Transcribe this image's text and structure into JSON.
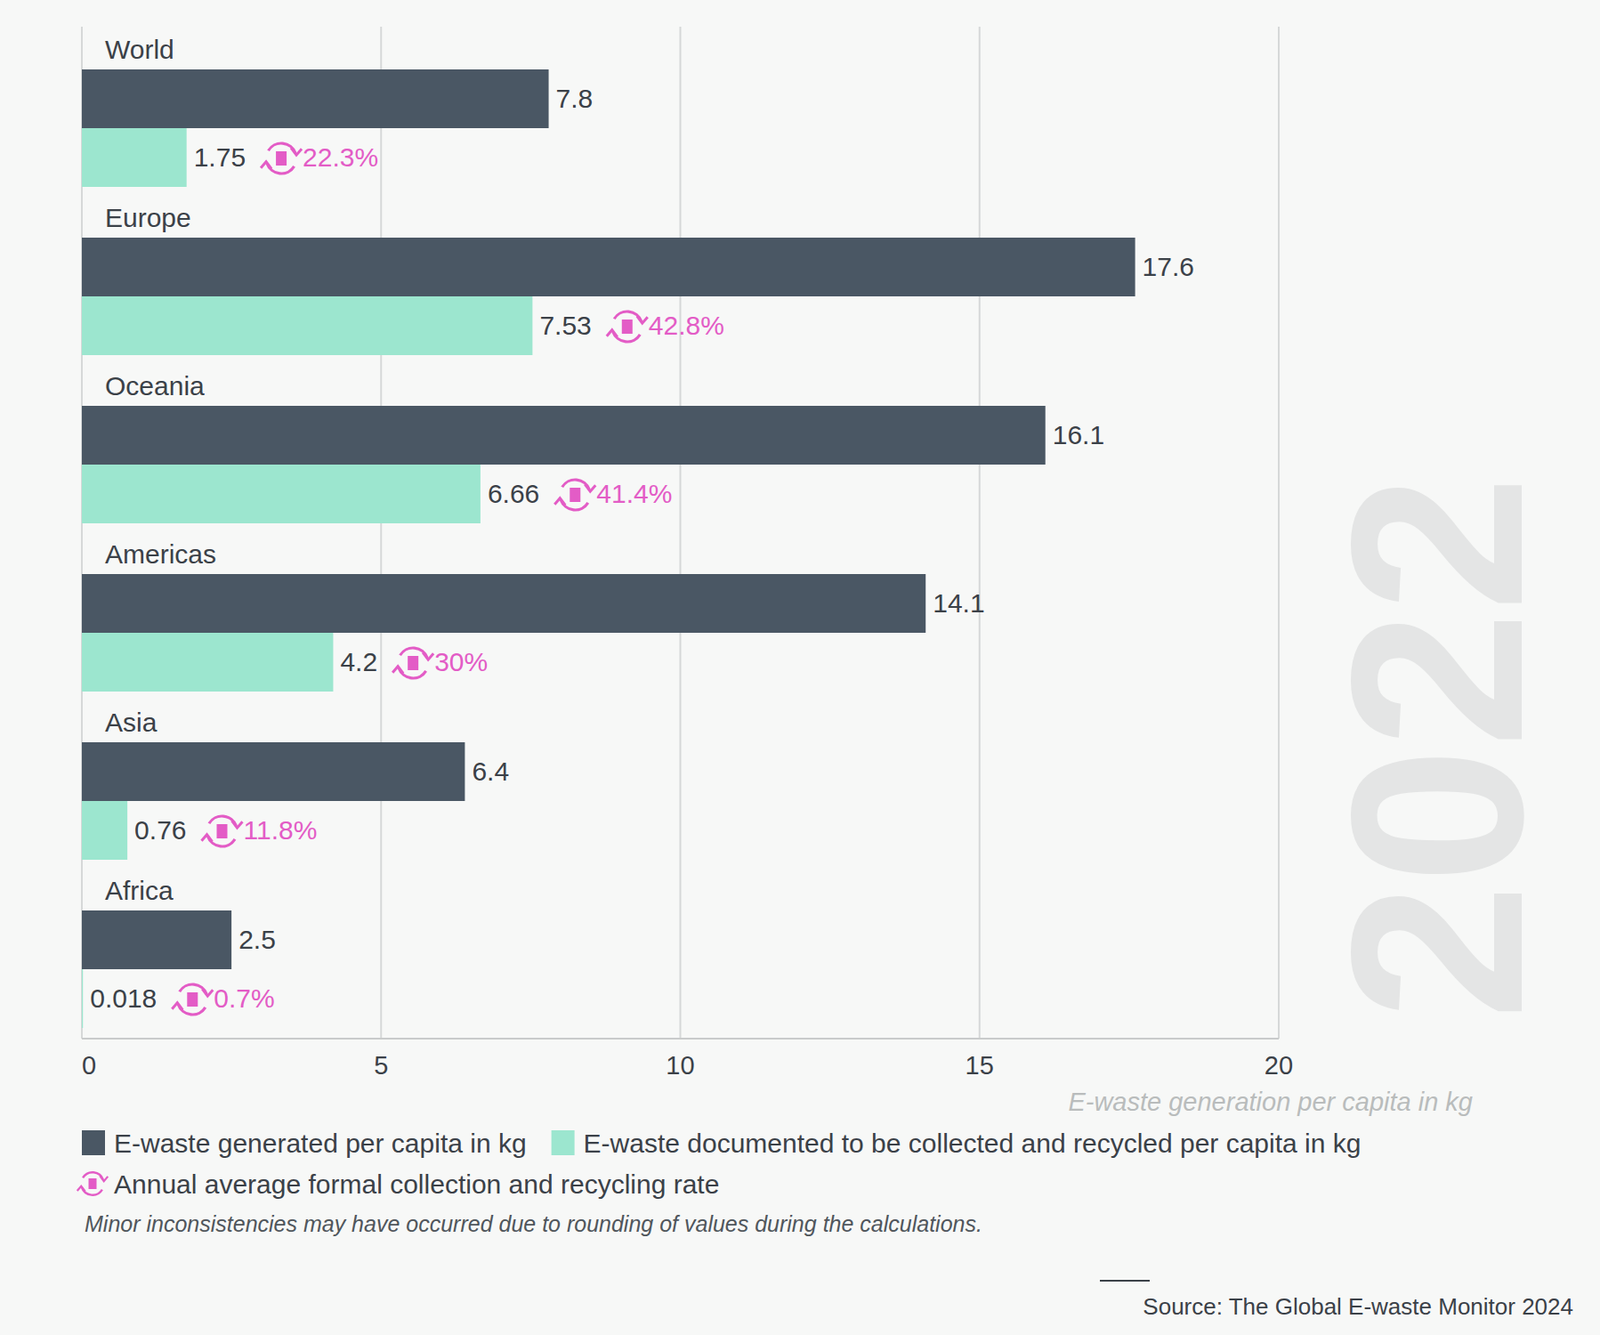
{
  "chart_data": {
    "type": "bar",
    "orientation": "horizontal",
    "categories": [
      "World",
      "Europe",
      "Oceania",
      "Americas",
      "Asia",
      "Africa"
    ],
    "series": [
      {
        "name": "E-waste generated per capita in kg",
        "color": "#4a5764",
        "values": [
          7.8,
          17.6,
          16.1,
          14.1,
          6.4,
          2.5
        ]
      },
      {
        "name": "E-waste documented to be collected and recycled per capita in kg",
        "color": "#9ce6cf",
        "values": [
          1.75,
          7.53,
          6.66,
          4.2,
          0.76,
          0.018
        ]
      }
    ],
    "rates": {
      "name": "Annual average formal collection and recycling rate",
      "color": "#e35cc6",
      "values": [
        22.3,
        42.8,
        41.4,
        30,
        11.8,
        0.7
      ],
      "value_labels": [
        "22.3%",
        "42.8%",
        "41.4%",
        "30%",
        "11.8%",
        "0.7%"
      ]
    },
    "xlim": [
      0,
      20
    ],
    "xticks": [
      0,
      5,
      10,
      15,
      20
    ],
    "x_label": "E-waste generation per capita in kg",
    "grid": true,
    "data_labels": true,
    "watermark": "2022",
    "note": "Minor inconsistencies may have occurred due to rounding of values during the calculations.",
    "source": "Source: The Global E-waste Monitor 2024"
  }
}
